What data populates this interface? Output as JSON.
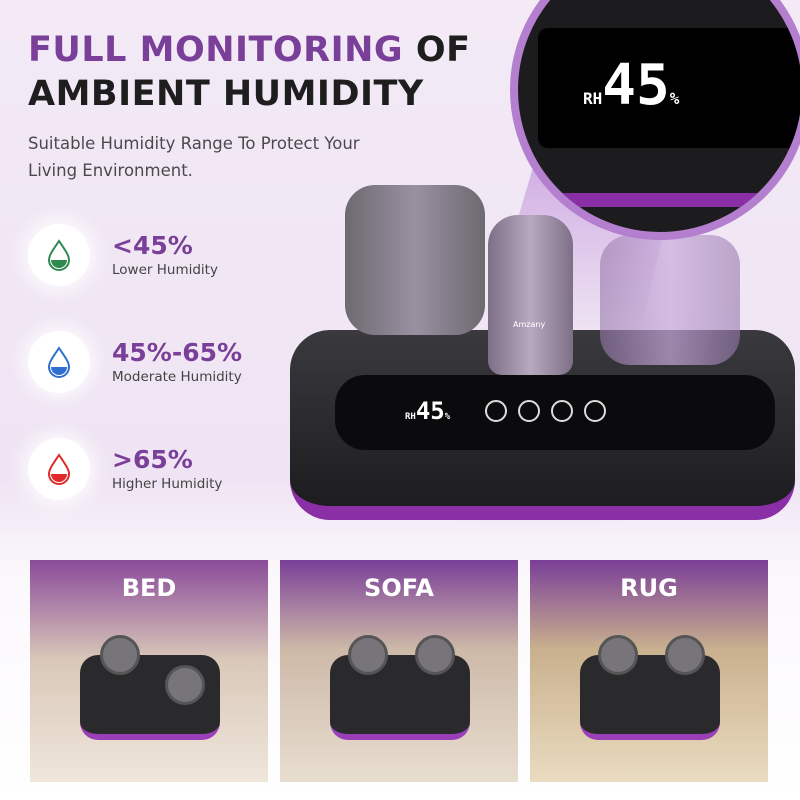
{
  "headline": {
    "highlight": "FULL MONITORING",
    "rest_line1": "OF",
    "line2": "AMBIENT HUMIDITY"
  },
  "subtitle": {
    "line1": "Suitable Humidity Range To Protect Your",
    "line2": "Living Environment."
  },
  "levels": [
    {
      "range": "<45%",
      "label": "Lower Humidity",
      "icon": "water-drop-icon",
      "color": "#2e8a4e"
    },
    {
      "range": "45%-65%",
      "label": "Moderate Humidity",
      "icon": "water-drop-icon",
      "color": "#2f6fd0"
    },
    {
      "range": ">65%",
      "label": "Higher Humidity",
      "icon": "water-drop-icon",
      "color": "#e02a2a"
    }
  ],
  "device": {
    "brand": "Amzany",
    "display_label": "RH",
    "display_value": "45",
    "display_unit": "%"
  },
  "scenes": [
    {
      "label": "BED"
    },
    {
      "label": "SOFA"
    },
    {
      "label": "RUG"
    }
  ],
  "colors": {
    "accent": "#7a3f98",
    "device_stripe": "#8a2fa6"
  }
}
